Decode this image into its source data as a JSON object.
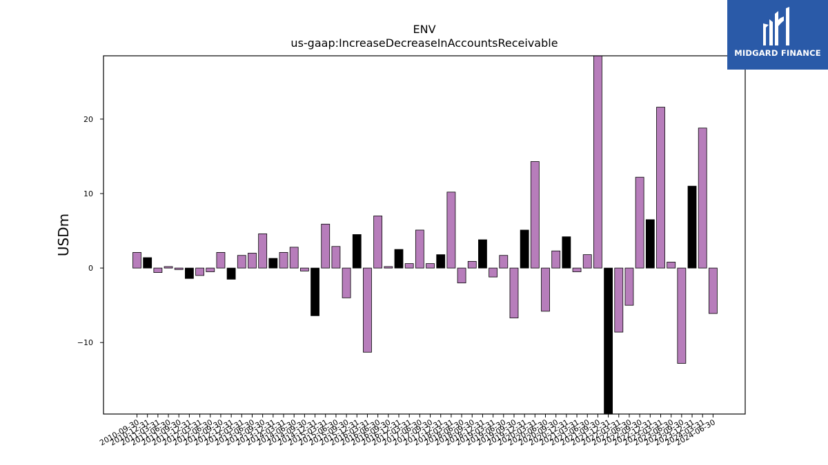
{
  "chart_data": {
    "type": "bar",
    "title": "ENV",
    "subtitle": "us-gaap:IncreaseDecreaseInAccountsReceivable",
    "ylabel": "USDm",
    "xlabel": "",
    "ylim": [
      -19.6,
      28.5
    ],
    "yticks": [
      -10,
      0,
      10,
      20
    ],
    "grid": false,
    "colors": {
      "default": "#b77dbb",
      "highlight": "#000000",
      "edge": "#000000"
    },
    "categories": [
      "2010-09-30",
      "2010-12-31",
      "2011-03-31",
      "2011-06-30",
      "2011-09-30",
      "2011-12-31",
      "2012-03-31",
      "2012-06-30",
      "2012-09-30",
      "2012-12-31",
      "2013-03-31",
      "2013-06-30",
      "2013-09-30",
      "2013-12-31",
      "2014-03-31",
      "2014-06-30",
      "2014-09-30",
      "2014-12-31",
      "2015-03-31",
      "2015-06-30",
      "2015-09-30",
      "2015-12-31",
      "2016-03-31",
      "2016-06-30",
      "2016-09-30",
      "2016-12-31",
      "2017-03-31",
      "2017-06-30",
      "2017-09-30",
      "2017-12-31",
      "2018-03-31",
      "2018-06-30",
      "2018-09-30",
      "2018-12-31",
      "2019-03-31",
      "2019-06-30",
      "2019-09-30",
      "2019-12-31",
      "2020-03-31",
      "2020-06-30",
      "2020-09-30",
      "2020-12-31",
      "2021-03-31",
      "2021-06-30",
      "2021-09-30",
      "2021-12-31",
      "2022-03-31",
      "2022-06-30",
      "2022-09-30",
      "2022-12-31",
      "2023-03-31",
      "2023-06-30",
      "2023-09-30",
      "2023-12-31",
      "2024-03-31",
      "2024-06-30"
    ],
    "values": [
      2.1,
      1.4,
      -0.6,
      0.2,
      -0.2,
      -1.4,
      -1.0,
      -0.5,
      2.1,
      -1.5,
      1.7,
      2.0,
      4.6,
      1.3,
      2.1,
      2.8,
      -0.4,
      -6.4,
      5.9,
      2.9,
      -4.0,
      4.5,
      -11.3,
      7.0,
      0.2,
      2.5,
      0.6,
      5.1,
      0.6,
      1.8,
      10.2,
      -2.0,
      0.9,
      3.8,
      -1.2,
      1.7,
      -6.7,
      5.1,
      14.3,
      -5.8,
      2.3,
      4.2,
      -0.5,
      1.8,
      28.5,
      -19.6,
      -8.6,
      -5.0,
      12.2,
      6.5,
      21.6,
      0.8,
      -12.8,
      11.0,
      18.8,
      -6.1
    ],
    "highlighted": [
      1,
      5,
      9,
      13,
      17,
      21,
      25,
      29,
      33,
      37,
      41,
      45,
      49,
      53
    ]
  },
  "logo": {
    "text": "MIDGARD FINANCE"
  }
}
